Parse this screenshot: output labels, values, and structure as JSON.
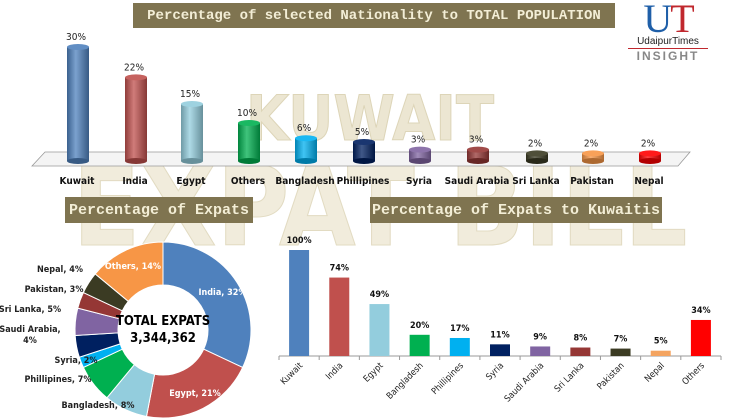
{
  "watermark": [
    "KUWAIT",
    "EXPAT BILL"
  ],
  "logo": {
    "letters_u": "U",
    "letters_t": "T",
    "name": "UdaipurTimes",
    "tagline": "INSIGHT"
  },
  "chart_data": [
    {
      "type": "bar",
      "style": "3d-cylinder",
      "title": "Percentage of selected Nationality to TOTAL POPULATION",
      "categories": [
        "Kuwait",
        "India",
        "Egypt",
        "Others",
        "Bangladesh",
        "Phillipines",
        "Syria",
        "Saudi Arabia",
        "Sri Lanka",
        "Pakistan",
        "Nepal"
      ],
      "values": [
        30,
        22,
        15,
        10,
        6,
        5,
        3,
        3,
        2,
        2,
        2
      ],
      "labels": [
        "30%",
        "22%",
        "15%",
        "10%",
        "6%",
        "5%",
        "3%",
        "3%",
        "2%",
        "2%",
        "2%"
      ],
      "colors": [
        "#4f81bd",
        "#c0504d",
        "#93cddd",
        "#00b050",
        "#00b0f0",
        "#002060",
        "#8064a2",
        "#953735",
        "#3b3b23",
        "#f79646",
        "#ff0000"
      ],
      "unit": "%"
    },
    {
      "type": "pie",
      "style": "donut",
      "title": "Percentage of Expats",
      "center_label": "TOTAL EXPATS",
      "center_value": "3,344,362",
      "categories": [
        "India",
        "Egypt",
        "Bangladesh",
        "Phillipines",
        "Syria",
        "Saudi Arabia",
        "Sri Lanka",
        "Pakistan",
        "Nepal",
        "Others"
      ],
      "values": [
        32,
        21,
        8,
        7,
        2,
        4,
        5,
        3,
        4,
        14
      ],
      "labels": [
        "India, 32%",
        "Egypt, 21%",
        "Bangladesh, 8%",
        "Phillipines, 7%",
        "Syria, 2%",
        "Saudi Arabia, 4%",
        "Sri Lanka, 5%",
        "Pakistan, 3%",
        "Nepal, 4%",
        "Others, 14%"
      ],
      "colors": [
        "#4f81bd",
        "#c0504d",
        "#93cddd",
        "#00b050",
        "#00b0f0",
        "#002060",
        "#8064a2",
        "#953735",
        "#3b3b23",
        "#f79646"
      ]
    },
    {
      "type": "bar",
      "title": "Percentage of Expats to Kuwaitis",
      "categories": [
        "Kuwait",
        "India",
        "Egypt",
        "Bangladesh",
        "Phillipines",
        "Syria",
        "Saudi Arabia",
        "Sri Lanka",
        "Pakistan",
        "Nepal",
        "Others"
      ],
      "values": [
        100,
        74,
        49,
        20,
        17,
        11,
        9,
        8,
        7,
        5,
        34
      ],
      "labels": [
        "100%",
        "74%",
        "49%",
        "20%",
        "17%",
        "11%",
        "9%",
        "8%",
        "7%",
        "5%",
        "34%"
      ],
      "colors": [
        "#4f81bd",
        "#c0504d",
        "#93cddd",
        "#00b050",
        "#00b0f0",
        "#002060",
        "#8064a2",
        "#953735",
        "#3b3b23",
        "#f4a460",
        "#ff0000"
      ],
      "ylim": [
        0,
        100
      ],
      "unit": "%"
    }
  ]
}
